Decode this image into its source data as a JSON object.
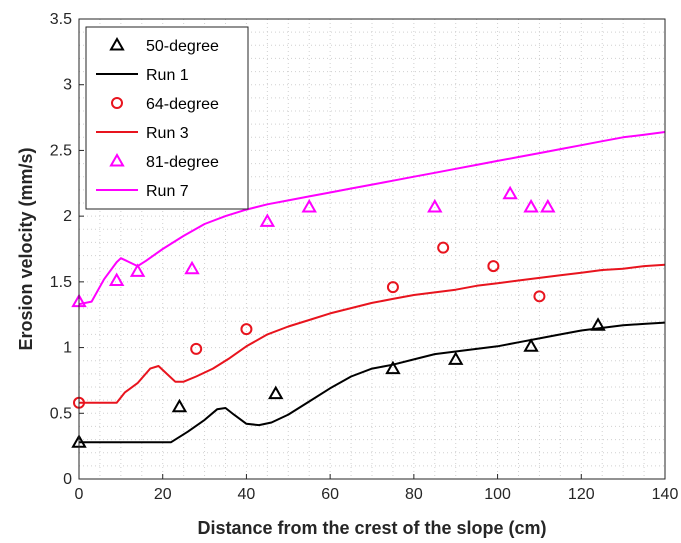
{
  "chart_data": {
    "type": "line",
    "xlabel": "Distance from the crest of the slope (cm)",
    "ylabel": "Erosion velocity (mm/s)",
    "xlim": [
      0,
      140
    ],
    "ylim": [
      0,
      3.5
    ],
    "xticks": [
      "0",
      "20",
      "40",
      "60",
      "80",
      "100",
      "120",
      "140"
    ],
    "yticks": [
      "0",
      "0.5",
      "1",
      "1.5",
      "2",
      "2.5",
      "3",
      "3.5"
    ],
    "grid": "dotted minor grid",
    "legend_position": "top-left",
    "series": [
      {
        "name": "50-degree",
        "kind": "marker",
        "marker": "triangle",
        "color": "#000000",
        "points": [
          [
            0,
            0.28
          ],
          [
            24,
            0.55
          ],
          [
            47,
            0.65
          ],
          [
            75,
            0.84
          ],
          [
            90,
            0.91
          ],
          [
            108,
            1.01
          ],
          [
            124,
            1.17
          ]
        ]
      },
      {
        "name": "Run 1",
        "kind": "line",
        "color": "#000000",
        "points": [
          [
            0,
            0.28
          ],
          [
            22,
            0.28
          ],
          [
            26,
            0.36
          ],
          [
            30,
            0.45
          ],
          [
            33,
            0.53
          ],
          [
            35,
            0.54
          ],
          [
            37,
            0.49
          ],
          [
            40,
            0.42
          ],
          [
            43,
            0.41
          ],
          [
            46,
            0.43
          ],
          [
            50,
            0.49
          ],
          [
            55,
            0.59
          ],
          [
            60,
            0.69
          ],
          [
            65,
            0.78
          ],
          [
            70,
            0.84
          ],
          [
            75,
            0.87
          ],
          [
            80,
            0.91
          ],
          [
            85,
            0.95
          ],
          [
            90,
            0.97
          ],
          [
            95,
            0.99
          ],
          [
            100,
            1.01
          ],
          [
            105,
            1.04
          ],
          [
            110,
            1.07
          ],
          [
            115,
            1.1
          ],
          [
            120,
            1.13
          ],
          [
            125,
            1.15
          ],
          [
            130,
            1.17
          ],
          [
            135,
            1.18
          ],
          [
            140,
            1.19
          ]
        ]
      },
      {
        "name": "64-degree",
        "kind": "marker",
        "marker": "circle",
        "color": "#e8141e",
        "points": [
          [
            0,
            0.58
          ],
          [
            28,
            0.99
          ],
          [
            40,
            1.14
          ],
          [
            75,
            1.46
          ],
          [
            87,
            1.76
          ],
          [
            99,
            1.62
          ],
          [
            110,
            1.39
          ]
        ]
      },
      {
        "name": "Run 3",
        "kind": "line",
        "color": "#e8141e",
        "points": [
          [
            0,
            0.58
          ],
          [
            9,
            0.58
          ],
          [
            11,
            0.66
          ],
          [
            14,
            0.73
          ],
          [
            17,
            0.84
          ],
          [
            19,
            0.86
          ],
          [
            21,
            0.8
          ],
          [
            23,
            0.74
          ],
          [
            25,
            0.74
          ],
          [
            28,
            0.78
          ],
          [
            32,
            0.84
          ],
          [
            36,
            0.92
          ],
          [
            40,
            1.01
          ],
          [
            45,
            1.1
          ],
          [
            50,
            1.16
          ],
          [
            55,
            1.21
          ],
          [
            60,
            1.26
          ],
          [
            65,
            1.3
          ],
          [
            70,
            1.34
          ],
          [
            75,
            1.37
          ],
          [
            80,
            1.4
          ],
          [
            85,
            1.42
          ],
          [
            90,
            1.44
          ],
          [
            95,
            1.47
          ],
          [
            100,
            1.49
          ],
          [
            105,
            1.51
          ],
          [
            110,
            1.53
          ],
          [
            115,
            1.55
          ],
          [
            120,
            1.57
          ],
          [
            125,
            1.59
          ],
          [
            130,
            1.6
          ],
          [
            135,
            1.62
          ],
          [
            140,
            1.63
          ]
        ]
      },
      {
        "name": "81-degree",
        "kind": "marker",
        "marker": "triangle",
        "color": "#ff00ff",
        "points": [
          [
            0,
            1.35
          ],
          [
            9,
            1.51
          ],
          [
            14,
            1.58
          ],
          [
            27,
            1.6
          ],
          [
            45,
            1.96
          ],
          [
            55,
            2.07
          ],
          [
            85,
            2.07
          ],
          [
            103,
            2.17
          ],
          [
            108,
            2.07
          ],
          [
            112,
            2.07
          ]
        ]
      },
      {
        "name": "Run 7",
        "kind": "line",
        "color": "#ff00ff",
        "points": [
          [
            0,
            1.33
          ],
          [
            3,
            1.35
          ],
          [
            6,
            1.52
          ],
          [
            9,
            1.65
          ],
          [
            10,
            1.68
          ],
          [
            12,
            1.65
          ],
          [
            14,
            1.62
          ],
          [
            16,
            1.66
          ],
          [
            20,
            1.75
          ],
          [
            25,
            1.85
          ],
          [
            30,
            1.94
          ],
          [
            35,
            2.0
          ],
          [
            40,
            2.05
          ],
          [
            45,
            2.09
          ],
          [
            50,
            2.12
          ],
          [
            55,
            2.15
          ],
          [
            60,
            2.18
          ],
          [
            65,
            2.21
          ],
          [
            70,
            2.24
          ],
          [
            75,
            2.27
          ],
          [
            80,
            2.3
          ],
          [
            85,
            2.33
          ],
          [
            90,
            2.36
          ],
          [
            95,
            2.39
          ],
          [
            100,
            2.42
          ],
          [
            105,
            2.45
          ],
          [
            110,
            2.48
          ],
          [
            115,
            2.51
          ],
          [
            120,
            2.54
          ],
          [
            125,
            2.57
          ],
          [
            130,
            2.6
          ],
          [
            135,
            2.62
          ],
          [
            140,
            2.64
          ]
        ]
      }
    ]
  }
}
